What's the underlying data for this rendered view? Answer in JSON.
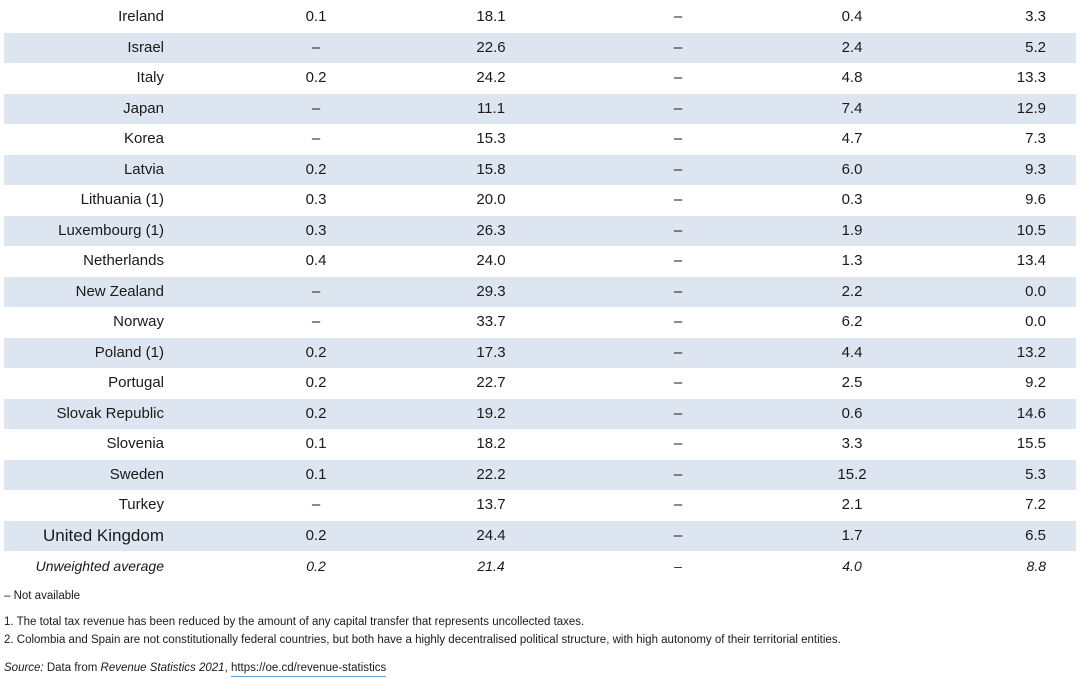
{
  "table": {
    "rows": [
      {
        "country": "Ireland",
        "c1": "0.1",
        "c2": "18.1",
        "c3": "–",
        "c4": "0.4",
        "c5": "3.3"
      },
      {
        "country": "Israel",
        "c1": "–",
        "c2": "22.6",
        "c3": "–",
        "c4": "2.4",
        "c5": "5.2"
      },
      {
        "country": "Italy",
        "c1": "0.2",
        "c2": "24.2",
        "c3": "–",
        "c4": "4.8",
        "c5": "13.3"
      },
      {
        "country": "Japan",
        "c1": "–",
        "c2": "11.1",
        "c3": "–",
        "c4": "7.4",
        "c5": "12.9"
      },
      {
        "country": "Korea",
        "c1": "–",
        "c2": "15.3",
        "c3": "–",
        "c4": "4.7",
        "c5": "7.3"
      },
      {
        "country": "Latvia",
        "c1": "0.2",
        "c2": "15.8",
        "c3": "–",
        "c4": "6.0",
        "c5": "9.3"
      },
      {
        "country": "Lithuania (1)",
        "c1": "0.3",
        "c2": "20.0",
        "c3": "–",
        "c4": "0.3",
        "c5": "9.6"
      },
      {
        "country": "Luxembourg (1)",
        "c1": "0.3",
        "c2": "26.3",
        "c3": "–",
        "c4": "1.9",
        "c5": "10.5"
      },
      {
        "country": "Netherlands",
        "c1": "0.4",
        "c2": "24.0",
        "c3": "–",
        "c4": "1.3",
        "c5": "13.4"
      },
      {
        "country": "New Zealand",
        "c1": "–",
        "c2": "29.3",
        "c3": "–",
        "c4": "2.2",
        "c5": "0.0"
      },
      {
        "country": "Norway",
        "c1": "–",
        "c2": "33.7",
        "c3": "–",
        "c4": "6.2",
        "c5": "0.0"
      },
      {
        "country": "Poland (1)",
        "c1": "0.2",
        "c2": "17.3",
        "c3": "–",
        "c4": "4.4",
        "c5": "13.2"
      },
      {
        "country": "Portugal",
        "c1": "0.2",
        "c2": "22.7",
        "c3": "–",
        "c4": "2.5",
        "c5": "9.2"
      },
      {
        "country": "Slovak Republic",
        "c1": "0.2",
        "c2": "19.2",
        "c3": "–",
        "c4": "0.6",
        "c5": "14.6"
      },
      {
        "country": "Slovenia",
        "c1": "0.1",
        "c2": "18.2",
        "c3": "–",
        "c4": "3.3",
        "c5": "15.5"
      },
      {
        "country": "Sweden",
        "c1": "0.1",
        "c2": "22.2",
        "c3": "–",
        "c4": "15.2",
        "c5": "5.3"
      },
      {
        "country": "Turkey",
        "c1": "–",
        "c2": "13.7",
        "c3": "–",
        "c4": "2.1",
        "c5": "7.2"
      },
      {
        "country": "United Kingdom",
        "c1": "0.2",
        "c2": "24.4",
        "c3": "–",
        "c4": "1.7",
        "c5": "6.5"
      },
      {
        "country": "Unweighted average",
        "c1": "0.2",
        "c2": "21.4",
        "c3": "–",
        "c4": "4.0",
        "c5": "8.8"
      }
    ]
  },
  "notes": {
    "not_available": "– Not available",
    "note1": "1. The total tax revenue has been reduced by the amount of any capital transfer that represents uncollected taxes.",
    "note2": "2. Colombia and Spain are not constitutionally federal countries, but both have a highly decentralised political structure, with high autonomy of their territorial entities.",
    "source_label": "Source:",
    "source_text": " Data from ",
    "source_pub": "Revenue Statistics 2021",
    "source_sep": ", ",
    "source_link": "https://oe.cd/revenue-statistics"
  },
  "colors": {
    "row_stripe": "#dde5f0",
    "link_underline": "#5aa0d6"
  }
}
